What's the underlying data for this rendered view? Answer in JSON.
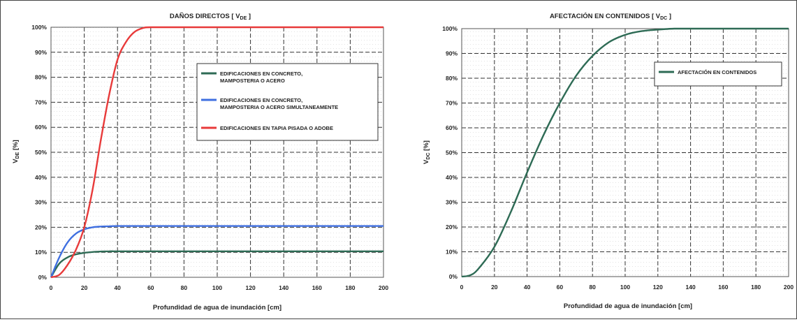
{
  "chart_data": [
    {
      "type": "line",
      "title": "DAÑOS DIRECTOS [ V",
      "title_sub": "DE",
      "title_end": " ]",
      "xlabel": "Profundidad de agua de inundación [cm]",
      "ylabel": "V",
      "ylabel_sub": "DE",
      "ylabel_end": "  [%]",
      "xlim": [
        0,
        200
      ],
      "ylim": [
        0,
        100
      ],
      "x_ticks": [
        "0",
        "20",
        "40",
        "60",
        "80",
        "100",
        "120",
        "140",
        "160",
        "180",
        "200"
      ],
      "y_ticks": [
        "0%",
        "10%",
        "20%",
        "30%",
        "40%",
        "50%",
        "60%",
        "70%",
        "80%",
        "90%",
        "100%"
      ],
      "grid": true,
      "legend_position": "center-right",
      "series": [
        {
          "name_lines": [
            "EDIFICACIONES EN CONCRETO,",
            "MAMPOSTERIA O ACERO"
          ],
          "color": "#2e6b55",
          "x": [
            0,
            5,
            10,
            15,
            20,
            25,
            30,
            35,
            40,
            50,
            60,
            80,
            100,
            120,
            140,
            160,
            180,
            200
          ],
          "y": [
            0,
            5.5,
            8,
            9.2,
            9.8,
            10.1,
            10.3,
            10.4,
            10.4,
            10.4,
            10.4,
            10.4,
            10.4,
            10.4,
            10.4,
            10.4,
            10.4,
            10.4
          ]
        },
        {
          "name_lines": [
            "EDIFICACIONES EN CONCRETO,",
            "MAMPOSTERIA O ACERO SIMULTANEAMENTE"
          ],
          "color": "#3f6fe0",
          "x": [
            0,
            5,
            10,
            15,
            20,
            25,
            30,
            35,
            40,
            50,
            60,
            80,
            100,
            120,
            140,
            160,
            180,
            200
          ],
          "y": [
            0,
            8,
            14,
            17.5,
            19.2,
            20,
            20.3,
            20.4,
            20.5,
            20.5,
            20.5,
            20.5,
            20.5,
            20.5,
            20.5,
            20.5,
            20.5,
            20.5
          ]
        },
        {
          "name_lines": [
            "EDIFICACIONES EN TAPIA PISADA  O ADOBE"
          ],
          "color": "#e83a3a",
          "x": [
            0,
            5,
            10,
            15,
            20,
            25,
            30,
            35,
            40,
            45,
            50,
            55,
            60,
            80,
            100,
            120,
            140,
            160,
            180,
            200
          ],
          "y": [
            0,
            1,
            5,
            11,
            20,
            35,
            55,
            73,
            87,
            94,
            98,
            99.6,
            100,
            100,
            100,
            100,
            100,
            100,
            100,
            100
          ]
        }
      ]
    },
    {
      "type": "line",
      "title": "AFECTACIÓN EN CONTENIDOS  [ V",
      "title_sub": "DC",
      "title_end": " ]",
      "xlabel": "Profundidad de agua de inundación [cm]",
      "ylabel": "V",
      "ylabel_sub": "DC",
      "ylabel_end": "  [%]",
      "xlim": [
        0,
        200
      ],
      "ylim": [
        0,
        100
      ],
      "x_ticks": [
        "0",
        "20",
        "40",
        "60",
        "80",
        "100",
        "120",
        "140",
        "160",
        "180",
        "200"
      ],
      "y_ticks": [
        "0%",
        "10%",
        "20%",
        "30%",
        "40%",
        "50%",
        "60%",
        "70%",
        "80%",
        "90%",
        "100%"
      ],
      "grid": true,
      "legend_position": "top-right",
      "series": [
        {
          "name_lines": [
            "AFECTACIÓN EN CONTENIDOS"
          ],
          "color": "#2e6b55",
          "x": [
            0,
            5,
            10,
            20,
            30,
            40,
            50,
            60,
            70,
            80,
            90,
            100,
            110,
            120,
            130,
            140,
            160,
            180,
            200
          ],
          "y": [
            0,
            0.5,
            3,
            12,
            26,
            42,
            57,
            70,
            81,
            89,
            94.5,
            97.5,
            99,
            99.6,
            100,
            100,
            100,
            100,
            100
          ]
        }
      ]
    }
  ]
}
